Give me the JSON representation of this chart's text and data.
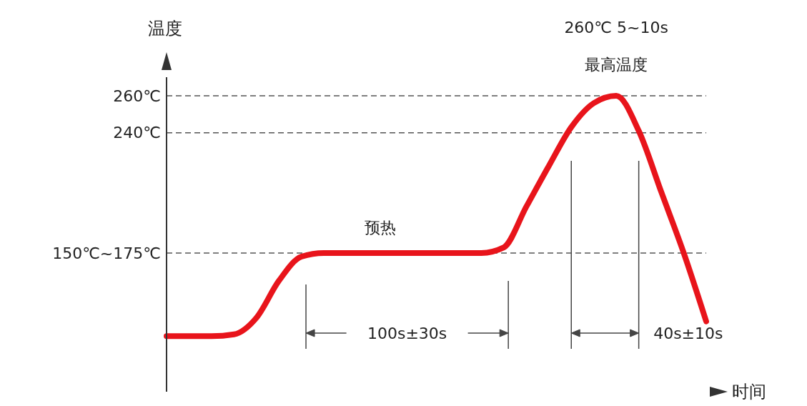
{
  "chart_data": {
    "type": "line",
    "xlabel": "时间",
    "ylabel": "温度",
    "categories": [
      null,
      null,
      null,
      null,
      null,
      null,
      null,
      null,
      null,
      null,
      null,
      null,
      null,
      null,
      null,
      null,
      null,
      null,
      null,
      null,
      null,
      null,
      null,
      null,
      null
    ],
    "series": [
      {
        "color": "#e8141b",
        "values": [
          130,
          130,
          130,
          131,
          140,
          160,
          173,
          175,
          175,
          175,
          175,
          175,
          175,
          175,
          175,
          178,
          200,
          222,
          243,
          256,
          260,
          241,
          208,
          175,
          138
        ]
      }
    ],
    "ylim": [
      100,
      270
    ],
    "yticks": [
      {
        "value": 175,
        "label": "150℃~175℃"
      },
      {
        "value": 240,
        "label": "240℃"
      },
      {
        "value": 260,
        "label": "260℃"
      }
    ],
    "ref_lines": [
      {
        "axis": "y",
        "value": 260,
        "color": "#555555",
        "line_style": "dashed"
      },
      {
        "axis": "y",
        "value": 240,
        "color": "#555555",
        "line_style": "dashed"
      },
      {
        "axis": "y",
        "value": 175,
        "color": "#555555",
        "line_style": "dashed"
      }
    ],
    "annotations": [
      "260℃ 5~10s",
      "最高温度",
      "预热",
      "100s±30s",
      "40s±10s"
    ],
    "marker": "none",
    "line_style": "solid"
  }
}
